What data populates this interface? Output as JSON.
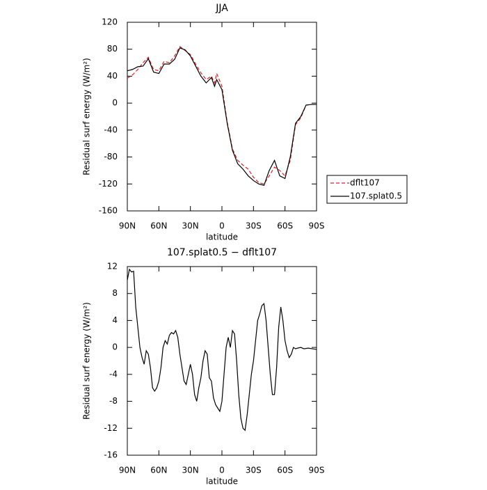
{
  "chart_data": [
    {
      "type": "line",
      "title": "JJA",
      "x_label": "latitude",
      "y_label": "Residual surf energy (W/m²)",
      "xlim": [
        90,
        -90
      ],
      "xticks": [
        {
          "value": 90,
          "label": "90N"
        },
        {
          "value": 60,
          "label": "60N"
        },
        {
          "value": 30,
          "label": "30N"
        },
        0,
        {
          "value": -30,
          "label": "30S"
        },
        {
          "value": -60,
          "label": "60S"
        },
        {
          "value": -90,
          "label": "90S"
        }
      ],
      "ylim": [
        -160,
        120
      ],
      "yticks": [
        -160,
        -120,
        -80,
        -40,
        0,
        40,
        80,
        120
      ],
      "x": [
        90,
        85,
        80,
        75,
        70,
        65,
        60,
        55,
        50,
        45,
        40,
        35,
        30,
        25,
        20,
        15,
        10,
        7,
        5,
        0,
        -5,
        -10,
        -15,
        -20,
        -25,
        -30,
        -35,
        -40,
        -45,
        -50,
        -55,
        -60,
        -65,
        -70,
        -75,
        -80,
        -85,
        -90
      ],
      "legend": "outside-right",
      "series": [
        {
          "name": "dflt107",
          "color": "#e41a1c",
          "line_style": "dashed",
          "values": [
            37,
            42,
            50,
            60,
            68,
            50,
            48,
            62,
            60,
            70,
            84,
            78,
            72,
            58,
            45,
            35,
            40,
            30,
            44,
            25,
            -28,
            -68,
            -85,
            -92,
            -98,
            -110,
            -118,
            -120,
            -108,
            -95,
            -100,
            -108,
            -85,
            -32,
            -22,
            -3,
            -2,
            -2
          ]
        },
        {
          "name": "107.splat0.5",
          "color": "#000000",
          "line_style": "solid",
          "values": [
            48,
            50,
            54,
            55,
            66,
            46,
            44,
            58,
            58,
            65,
            82,
            79,
            70,
            55,
            40,
            30,
            38,
            25,
            35,
            20,
            -30,
            -70,
            -90,
            -98,
            -108,
            -115,
            -120,
            -122,
            -100,
            -85,
            -108,
            -112,
            -80,
            -30,
            -20,
            -3,
            -2,
            -2
          ]
        }
      ]
    },
    {
      "type": "line",
      "title": "107.splat0.5 − dflt107",
      "x_label": "latitude",
      "y_label": "Residual surf energy (W/m²)",
      "xlim": [
        90,
        -90
      ],
      "xticks": [
        {
          "value": 90,
          "label": "90N"
        },
        {
          "value": 60,
          "label": "60N"
        },
        {
          "value": 30,
          "label": "30N"
        },
        0,
        {
          "value": -30,
          "label": "30S"
        },
        {
          "value": -60,
          "label": "60S"
        },
        {
          "value": -90,
          "label": "90S"
        }
      ],
      "ylim": [
        -16,
        12
      ],
      "yticks": [
        -16,
        -12,
        -8,
        -4,
        0,
        4,
        8,
        12
      ],
      "color": "#000000",
      "x": [
        90,
        88,
        86,
        84,
        82,
        80,
        78,
        76,
        74,
        72,
        70,
        68,
        66,
        64,
        62,
        60,
        58,
        56,
        54,
        52,
        50,
        48,
        46,
        44,
        42,
        40,
        38,
        36,
        34,
        32,
        30,
        28,
        26,
        24,
        22,
        20,
        18,
        16,
        14,
        12,
        10,
        8,
        6,
        4,
        2,
        0,
        -2,
        -4,
        -6,
        -8,
        -10,
        -12,
        -14,
        -16,
        -18,
        -20,
        -22,
        -24,
        -26,
        -28,
        -30,
        -32,
        -34,
        -36,
        -38,
        -40,
        -42,
        -44,
        -46,
        -48,
        -50,
        -52,
        -54,
        -56,
        -58,
        -60,
        -62,
        -64,
        -66,
        -68,
        -70,
        -72,
        -75,
        -78,
        -82,
        -86,
        -90
      ],
      "values": [
        10,
        11.6,
        11.2,
        11.3,
        6,
        3,
        0,
        -1.5,
        -2.5,
        -0.5,
        -1,
        -3,
        -6,
        -6.5,
        -6,
        -5,
        -3,
        0,
        1,
        0.5,
        1.8,
        2.2,
        2,
        2.5,
        1.5,
        -1,
        -3,
        -5,
        -5.5,
        -4,
        -2.5,
        -4,
        -7,
        -8,
        -6,
        -4.5,
        -2,
        -0.5,
        -1,
        -4.5,
        -5,
        -7.5,
        -8.5,
        -9,
        -9.5,
        -8,
        -4,
        0,
        1.5,
        0,
        2.5,
        2,
        -2,
        -7,
        -10.5,
        -12,
        -12.3,
        -10,
        -7,
        -4,
        -2,
        1,
        4,
        5,
        6.2,
        6.5,
        4,
        0,
        -4,
        -7,
        -7,
        -3,
        3,
        6,
        4,
        1,
        -0.5,
        -1.5,
        -1,
        0,
        -0.2,
        -0.1,
        0,
        -0.2,
        -0.1,
        -0.2,
        -0.3
      ]
    }
  ]
}
